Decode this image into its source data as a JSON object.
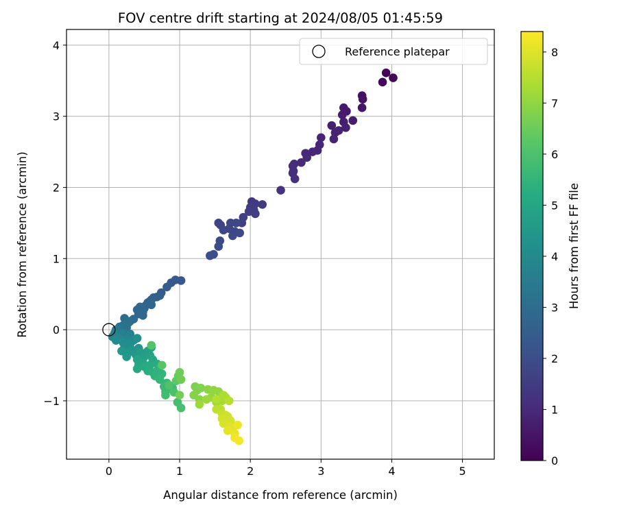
{
  "chart_data": {
    "type": "scatter",
    "title": "FOV centre drift starting at 2024/08/05 01:45:59",
    "xlabel": "Angular distance from reference (arcmin)",
    "ylabel": "Rotation from reference (arcmin)",
    "xlim": [
      -0.6,
      5.45
    ],
    "ylim": [
      -1.82,
      4.22
    ],
    "xticks": [
      0,
      1,
      2,
      3,
      4,
      5
    ],
    "yticks": [
      -1,
      0,
      1,
      2,
      3,
      4
    ],
    "grid": true,
    "legend": {
      "placement": "top-right",
      "entries": [
        {
          "label": "Reference platepar",
          "marker": "open-circle"
        }
      ]
    },
    "reference_point": {
      "x": 0,
      "y": 0
    },
    "colorbar": {
      "label": "Hours from first FF file",
      "min": 0,
      "max": 8.4,
      "ticks": [
        0,
        1,
        2,
        3,
        4,
        5,
        6,
        7,
        8
      ],
      "colormap": "viridis"
    },
    "points": [
      {
        "x": 3.92,
        "y": 3.61,
        "c": 0.1
      },
      {
        "x": 4.02,
        "y": 3.54,
        "c": 0.15
      },
      {
        "x": 3.87,
        "y": 3.48,
        "c": 0.2
      },
      {
        "x": 3.58,
        "y": 3.29,
        "c": 0.4
      },
      {
        "x": 3.59,
        "y": 3.24,
        "c": 0.45
      },
      {
        "x": 3.58,
        "y": 3.12,
        "c": 0.5
      },
      {
        "x": 3.32,
        "y": 3.12,
        "c": 0.6
      },
      {
        "x": 3.36,
        "y": 3.07,
        "c": 0.62
      },
      {
        "x": 3.3,
        "y": 3.02,
        "c": 0.65
      },
      {
        "x": 3.45,
        "y": 2.94,
        "c": 0.7
      },
      {
        "x": 3.32,
        "y": 2.92,
        "c": 0.72
      },
      {
        "x": 3.15,
        "y": 2.87,
        "c": 0.75
      },
      {
        "x": 3.35,
        "y": 2.84,
        "c": 0.78
      },
      {
        "x": 3.25,
        "y": 2.8,
        "c": 0.8
      },
      {
        "x": 3.2,
        "y": 2.77,
        "c": 0.82
      },
      {
        "x": 3.18,
        "y": 2.68,
        "c": 0.85
      },
      {
        "x": 3.0,
        "y": 2.7,
        "c": 0.88
      },
      {
        "x": 2.98,
        "y": 2.6,
        "c": 0.9
      },
      {
        "x": 2.95,
        "y": 2.52,
        "c": 0.92
      },
      {
        "x": 2.88,
        "y": 2.5,
        "c": 0.95
      },
      {
        "x": 2.78,
        "y": 2.48,
        "c": 0.98
      },
      {
        "x": 2.8,
        "y": 2.42,
        "c": 1.0
      },
      {
        "x": 2.72,
        "y": 2.35,
        "c": 1.02
      },
      {
        "x": 2.62,
        "y": 2.33,
        "c": 1.05
      },
      {
        "x": 2.6,
        "y": 2.3,
        "c": 1.08
      },
      {
        "x": 2.61,
        "y": 2.23,
        "c": 1.1
      },
      {
        "x": 2.6,
        "y": 2.2,
        "c": 1.12
      },
      {
        "x": 2.63,
        "y": 2.12,
        "c": 1.15
      },
      {
        "x": 2.43,
        "y": 1.96,
        "c": 1.25
      },
      {
        "x": 2.02,
        "y": 1.8,
        "c": 1.4
      },
      {
        "x": 2.07,
        "y": 1.77,
        "c": 1.42
      },
      {
        "x": 2.17,
        "y": 1.76,
        "c": 1.45
      },
      {
        "x": 2.0,
        "y": 1.72,
        "c": 1.48
      },
      {
        "x": 2.05,
        "y": 1.68,
        "c": 1.5
      },
      {
        "x": 1.98,
        "y": 1.66,
        "c": 1.52
      },
      {
        "x": 2.07,
        "y": 1.63,
        "c": 1.55
      },
      {
        "x": 1.9,
        "y": 1.58,
        "c": 1.58
      },
      {
        "x": 1.88,
        "y": 1.5,
        "c": 1.6
      },
      {
        "x": 1.55,
        "y": 1.5,
        "c": 1.7
      },
      {
        "x": 1.58,
        "y": 1.47,
        "c": 1.72
      },
      {
        "x": 1.72,
        "y": 1.5,
        "c": 1.75
      },
      {
        "x": 1.8,
        "y": 1.5,
        "c": 1.78
      },
      {
        "x": 1.7,
        "y": 1.42,
        "c": 1.8
      },
      {
        "x": 1.62,
        "y": 1.4,
        "c": 1.82
      },
      {
        "x": 1.78,
        "y": 1.38,
        "c": 1.84
      },
      {
        "x": 1.85,
        "y": 1.36,
        "c": 1.86
      },
      {
        "x": 1.75,
        "y": 1.32,
        "c": 1.88
      },
      {
        "x": 1.57,
        "y": 1.25,
        "c": 1.9
      },
      {
        "x": 1.55,
        "y": 1.17,
        "c": 1.95
      },
      {
        "x": 1.48,
        "y": 1.06,
        "c": 2.0
      },
      {
        "x": 1.43,
        "y": 1.04,
        "c": 2.05
      },
      {
        "x": 1.02,
        "y": 0.69,
        "c": 2.3
      },
      {
        "x": 0.94,
        "y": 0.7,
        "c": 2.35
      },
      {
        "x": 0.88,
        "y": 0.66,
        "c": 2.4
      },
      {
        "x": 0.82,
        "y": 0.6,
        "c": 2.45
      },
      {
        "x": 0.74,
        "y": 0.52,
        "c": 2.5
      },
      {
        "x": 0.72,
        "y": 0.48,
        "c": 2.55
      },
      {
        "x": 0.68,
        "y": 0.46,
        "c": 2.6
      },
      {
        "x": 0.63,
        "y": 0.45,
        "c": 2.62
      },
      {
        "x": 0.6,
        "y": 0.42,
        "c": 2.65
      },
      {
        "x": 0.58,
        "y": 0.4,
        "c": 2.68
      },
      {
        "x": 0.55,
        "y": 0.38,
        "c": 2.7
      },
      {
        "x": 0.52,
        "y": 0.34,
        "c": 2.72
      },
      {
        "x": 0.6,
        "y": 0.35,
        "c": 2.75
      },
      {
        "x": 0.5,
        "y": 0.3,
        "c": 2.78
      },
      {
        "x": 0.44,
        "y": 0.32,
        "c": 2.8
      },
      {
        "x": 0.4,
        "y": 0.28,
        "c": 2.82
      },
      {
        "x": 0.48,
        "y": 0.25,
        "c": 2.85
      },
      {
        "x": 0.42,
        "y": 0.22,
        "c": 2.88
      },
      {
        "x": 0.48,
        "y": 0.2,
        "c": 2.9
      },
      {
        "x": 0.35,
        "y": 0.15,
        "c": 2.95
      },
      {
        "x": 0.3,
        "y": 0.12,
        "c": 3.0
      },
      {
        "x": 0.22,
        "y": 0.16,
        "c": 3.05
      },
      {
        "x": 0.28,
        "y": 0.1,
        "c": 3.1
      },
      {
        "x": 0.2,
        "y": 0.06,
        "c": 3.15
      },
      {
        "x": 0.25,
        "y": 0.03,
        "c": 3.2
      },
      {
        "x": 0.15,
        "y": 0.04,
        "c": 3.3
      },
      {
        "x": 0.1,
        "y": 0.0,
        "c": 3.4
      },
      {
        "x": 0.12,
        "y": -0.02,
        "c": 3.5
      },
      {
        "x": 0.2,
        "y": -0.05,
        "c": 3.6
      },
      {
        "x": 0.3,
        "y": -0.06,
        "c": 3.65
      },
      {
        "x": 0.18,
        "y": -0.08,
        "c": 3.7
      },
      {
        "x": 0.08,
        "y": -0.05,
        "c": 3.75
      },
      {
        "x": 0.05,
        "y": -0.1,
        "c": 3.8
      },
      {
        "x": 0.15,
        "y": -0.12,
        "c": 3.85
      },
      {
        "x": 0.25,
        "y": -0.14,
        "c": 3.9
      },
      {
        "x": 0.35,
        "y": -0.15,
        "c": 3.95
      },
      {
        "x": 0.1,
        "y": -0.15,
        "c": 4.0
      },
      {
        "x": 0.2,
        "y": -0.18,
        "c": 4.05
      },
      {
        "x": 0.3,
        "y": -0.2,
        "c": 4.1
      },
      {
        "x": 0.4,
        "y": -0.12,
        "c": 4.15
      },
      {
        "x": 0.22,
        "y": -0.25,
        "c": 4.2
      },
      {
        "x": 0.32,
        "y": -0.28,
        "c": 4.3
      },
      {
        "x": 0.42,
        "y": -0.26,
        "c": 4.35
      },
      {
        "x": 0.28,
        "y": -0.32,
        "c": 4.4
      },
      {
        "x": 0.18,
        "y": -0.3,
        "c": 4.45
      },
      {
        "x": 0.38,
        "y": -0.35,
        "c": 4.5
      },
      {
        "x": 0.25,
        "y": -0.38,
        "c": 4.55
      },
      {
        "x": 0.45,
        "y": -0.32,
        "c": 4.6
      },
      {
        "x": 0.5,
        "y": -0.38,
        "c": 4.7
      },
      {
        "x": 0.55,
        "y": -0.3,
        "c": 4.75
      },
      {
        "x": 0.6,
        "y": -0.25,
        "c": 4.8
      },
      {
        "x": 0.58,
        "y": -0.36,
        "c": 4.85
      },
      {
        "x": 0.4,
        "y": -0.42,
        "c": 4.9
      },
      {
        "x": 0.48,
        "y": -0.46,
        "c": 4.95
      },
      {
        "x": 0.62,
        "y": -0.42,
        "c": 5.0
      },
      {
        "x": 0.42,
        "y": -0.5,
        "c": 5.05
      },
      {
        "x": 0.4,
        "y": -0.55,
        "c": 5.1
      },
      {
        "x": 0.5,
        "y": -0.52,
        "c": 5.15
      },
      {
        "x": 0.58,
        "y": -0.5,
        "c": 5.2
      },
      {
        "x": 0.68,
        "y": -0.48,
        "c": 5.25
      },
      {
        "x": 0.55,
        "y": -0.58,
        "c": 5.3
      },
      {
        "x": 0.62,
        "y": -0.6,
        "c": 5.35
      },
      {
        "x": 0.7,
        "y": -0.55,
        "c": 5.4
      },
      {
        "x": 0.65,
        "y": -0.65,
        "c": 5.45
      },
      {
        "x": 0.75,
        "y": -0.62,
        "c": 5.5
      },
      {
        "x": 0.72,
        "y": -0.7,
        "c": 5.55
      },
      {
        "x": 0.82,
        "y": -0.75,
        "c": 5.6
      },
      {
        "x": 0.78,
        "y": -0.8,
        "c": 5.65
      },
      {
        "x": 0.8,
        "y": -0.87,
        "c": 5.7
      },
      {
        "x": 0.9,
        "y": -0.82,
        "c": 5.75
      },
      {
        "x": 0.8,
        "y": -0.92,
        "c": 5.8
      },
      {
        "x": 0.97,
        "y": -1.02,
        "c": 5.85
      },
      {
        "x": 1.02,
        "y": -1.1,
        "c": 5.9
      },
      {
        "x": 0.92,
        "y": -0.88,
        "c": 6.0
      },
      {
        "x": 0.85,
        "y": -0.78,
        "c": 6.05
      },
      {
        "x": 0.6,
        "y": -0.22,
        "c": 6.1
      },
      {
        "x": 0.75,
        "y": -0.5,
        "c": 6.2
      },
      {
        "x": 0.95,
        "y": -0.72,
        "c": 6.3
      },
      {
        "x": 0.98,
        "y": -0.65,
        "c": 6.4
      },
      {
        "x": 1.0,
        "y": -0.6,
        "c": 6.5
      },
      {
        "x": 1.02,
        "y": -0.7,
        "c": 6.55
      },
      {
        "x": 1.0,
        "y": -0.92,
        "c": 6.6
      },
      {
        "x": 1.22,
        "y": -0.8,
        "c": 6.7
      },
      {
        "x": 1.25,
        "y": -0.85,
        "c": 6.75
      },
      {
        "x": 1.3,
        "y": -0.82,
        "c": 6.8
      },
      {
        "x": 1.2,
        "y": -0.92,
        "c": 6.85
      },
      {
        "x": 1.28,
        "y": -0.98,
        "c": 6.9
      },
      {
        "x": 1.4,
        "y": -0.84,
        "c": 6.95
      },
      {
        "x": 1.48,
        "y": -0.85,
        "c": 7.0
      },
      {
        "x": 1.55,
        "y": -0.87,
        "c": 7.05
      },
      {
        "x": 1.45,
        "y": -0.95,
        "c": 7.1
      },
      {
        "x": 1.38,
        "y": -0.98,
        "c": 7.15
      },
      {
        "x": 1.28,
        "y": -1.05,
        "c": 7.2
      },
      {
        "x": 1.52,
        "y": -1.02,
        "c": 7.25
      },
      {
        "x": 1.6,
        "y": -1.0,
        "c": 7.3
      },
      {
        "x": 1.65,
        "y": -0.95,
        "c": 7.35
      },
      {
        "x": 1.62,
        "y": -0.92,
        "c": 7.4
      },
      {
        "x": 1.52,
        "y": -0.98,
        "c": 7.45
      },
      {
        "x": 1.7,
        "y": -1.0,
        "c": 7.5
      },
      {
        "x": 1.58,
        "y": -1.12,
        "c": 7.55
      },
      {
        "x": 1.52,
        "y": -1.12,
        "c": 7.6
      },
      {
        "x": 1.6,
        "y": -1.18,
        "c": 7.7
      },
      {
        "x": 1.65,
        "y": -1.2,
        "c": 7.75
      },
      {
        "x": 1.68,
        "y": -1.22,
        "c": 7.8
      },
      {
        "x": 1.6,
        "y": -1.25,
        "c": 7.85
      },
      {
        "x": 1.72,
        "y": -1.28,
        "c": 7.9
      },
      {
        "x": 1.62,
        "y": -1.32,
        "c": 7.95
      },
      {
        "x": 1.7,
        "y": -1.36,
        "c": 8.0
      },
      {
        "x": 1.75,
        "y": -1.38,
        "c": 8.05
      },
      {
        "x": 1.68,
        "y": -1.42,
        "c": 8.1
      },
      {
        "x": 1.78,
        "y": -1.46,
        "c": 8.15
      },
      {
        "x": 1.82,
        "y": -1.34,
        "c": 8.2
      },
      {
        "x": 1.78,
        "y": -1.52,
        "c": 8.25
      },
      {
        "x": 1.84,
        "y": -1.56,
        "c": 8.3
      }
    ]
  }
}
